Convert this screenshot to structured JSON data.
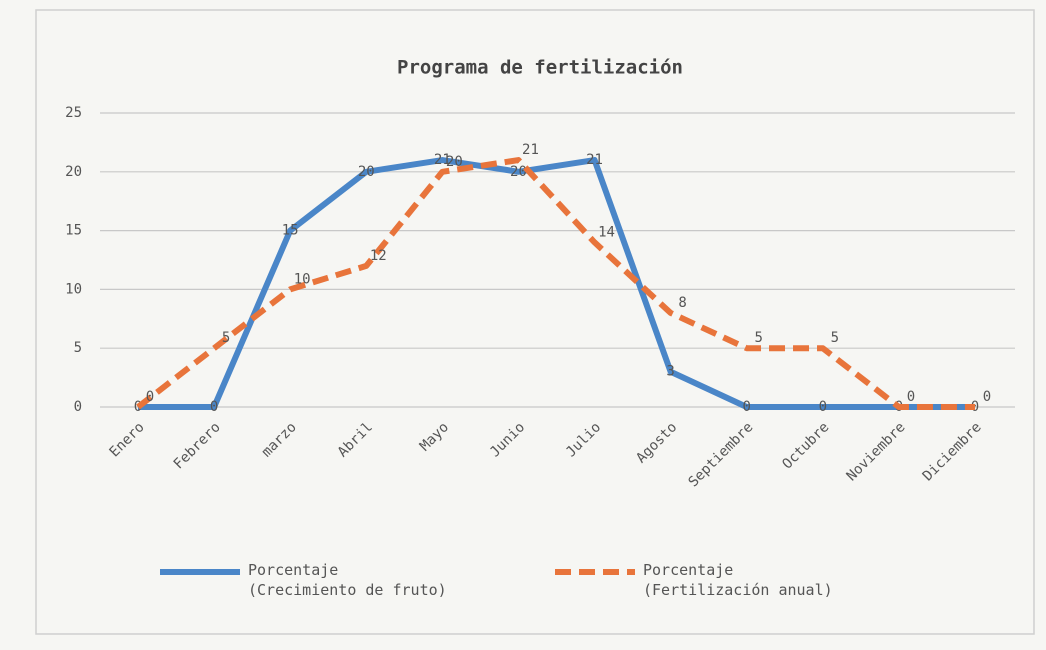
{
  "chart_data": {
    "type": "line",
    "title": "Programa de fertilización",
    "categories": [
      "Enero",
      "Febrero",
      "marzo",
      "Abril",
      "Mayo",
      "Junio",
      "Julio",
      "Agosto",
      "Septiembre",
      "Octubre",
      "Noviembre",
      "Diciembre"
    ],
    "series": [
      {
        "name": "Porcentaje\n(Crecimiento de fruto)",
        "color": "#4a86c8",
        "dashed": false,
        "values": [
          0,
          0,
          15,
          20,
          21,
          20,
          21,
          3,
          0,
          0,
          0,
          0
        ]
      },
      {
        "name": "Porcentaje\n(Fertilización anual)",
        "color": "#e8743b",
        "dashed": true,
        "values": [
          0,
          5,
          10,
          12,
          20,
          21,
          14,
          8,
          5,
          5,
          0,
          0
        ]
      }
    ],
    "ylim": [
      0,
      25
    ],
    "yticks": [
      0,
      5,
      10,
      15,
      20,
      25
    ],
    "grid": true,
    "legend": "bottom"
  }
}
